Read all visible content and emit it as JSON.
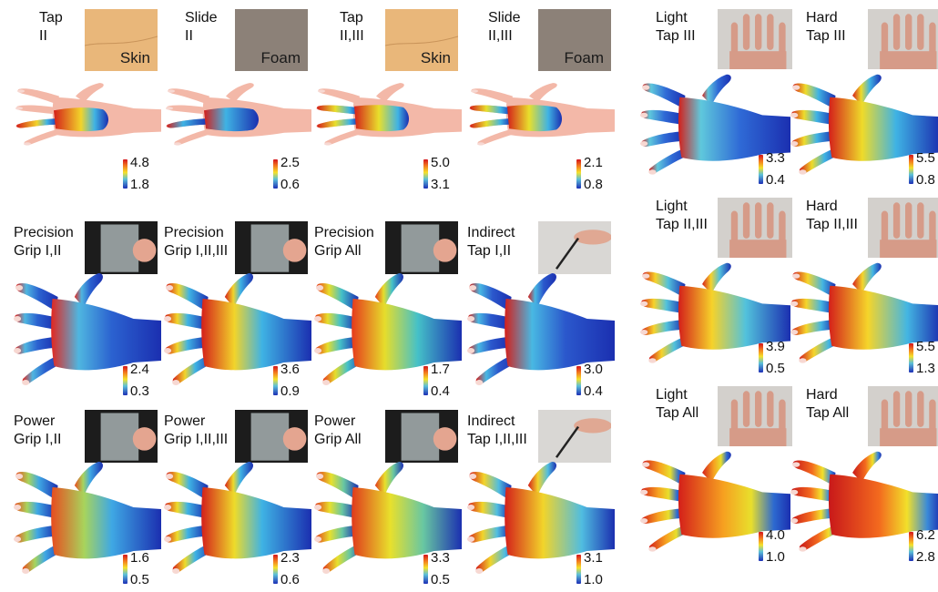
{
  "colors": {
    "skin": "#f3b8a8",
    "foam": "#8c8178",
    "skin_photo": "#e9b77a",
    "glass_bg": "#1c1c1c",
    "scale_high": "#d4141b",
    "scale_mid": "#f5e12a",
    "scale_low": "#1d2fb6"
  },
  "panels": [
    {
      "line1": "Tap",
      "line2": "II",
      "photo": "skin",
      "photo_label": "Skin",
      "vmax": "4.8",
      "vmin": "1.8",
      "hand": "palm-small"
    },
    {
      "line1": "Slide",
      "line2": "II",
      "photo": "foam",
      "photo_label": "Foam",
      "vmax": "2.5",
      "vmin": "0.6",
      "hand": "palm-small"
    },
    {
      "line1": "Tap",
      "line2": "II,III",
      "photo": "skin",
      "photo_label": "Skin",
      "vmax": "5.0",
      "vmin": "3.1",
      "hand": "palm-small"
    },
    {
      "line1": "Slide",
      "line2": "II,III",
      "photo": "foam",
      "photo_label": "Foam",
      "vmax": "2.1",
      "vmin": "0.8",
      "hand": "palm-small"
    },
    {
      "line1": "Precision",
      "line2": "Grip I,II",
      "photo": "glass",
      "photo_label": "",
      "vmax": "2.4",
      "vmin": "0.3",
      "hand": "full"
    },
    {
      "line1": "Precision",
      "line2": "Grip I,II,III",
      "photo": "glass",
      "photo_label": "",
      "vmax": "3.6",
      "vmin": "0.9",
      "hand": "full"
    },
    {
      "line1": "Precision",
      "line2": "Grip All",
      "photo": "glass",
      "photo_label": "",
      "vmax": "1.7",
      "vmin": "0.4",
      "hand": "full"
    },
    {
      "line1": "Indirect",
      "line2": "Tap I,II",
      "photo": "stylus",
      "photo_label": "",
      "vmax": "3.0",
      "vmin": "0.4",
      "hand": "full"
    },
    {
      "line1": "Power",
      "line2": "Grip I,II",
      "photo": "glass",
      "photo_label": "",
      "vmax": "1.6",
      "vmin": "0.5",
      "hand": "full"
    },
    {
      "line1": "Power",
      "line2": "Grip I,II,III",
      "photo": "glass",
      "photo_label": "",
      "vmax": "2.3",
      "vmin": "0.6",
      "hand": "full"
    },
    {
      "line1": "Power",
      "line2": "Grip All",
      "photo": "glass",
      "photo_label": "",
      "vmax": "3.3",
      "vmin": "0.5",
      "hand": "full"
    },
    {
      "line1": "Indirect",
      "line2": "Tap I,II,III",
      "photo": "stylus",
      "photo_label": "",
      "vmax": "3.1",
      "vmin": "1.0",
      "hand": "full"
    },
    {
      "line1": "Light",
      "line2": "Tap III",
      "photo": "handphoto",
      "photo_label": "",
      "vmax": "3.3",
      "vmin": "0.4",
      "hand": "full"
    },
    {
      "line1": "Hard",
      "line2": "Tap III",
      "photo": "handphoto",
      "photo_label": "",
      "vmax": "5.5",
      "vmin": "0.8",
      "hand": "full"
    },
    {
      "line1": "Light",
      "line2": "Tap II,III",
      "photo": "handphoto",
      "photo_label": "",
      "vmax": "3.9",
      "vmin": "0.5",
      "hand": "full"
    },
    {
      "line1": "Hard",
      "line2": "Tap II,III",
      "photo": "handphoto",
      "photo_label": "",
      "vmax": "5.5",
      "vmin": "1.3",
      "hand": "full"
    },
    {
      "line1": "Light",
      "line2": "Tap All",
      "photo": "handphoto",
      "photo_label": "",
      "vmax": "4.0",
      "vmin": "1.0",
      "hand": "full"
    },
    {
      "line1": "Hard",
      "line2": "Tap All",
      "photo": "handphoto",
      "photo_label": "",
      "vmax": "6.2",
      "vmin": "2.8",
      "hand": "full"
    }
  ]
}
